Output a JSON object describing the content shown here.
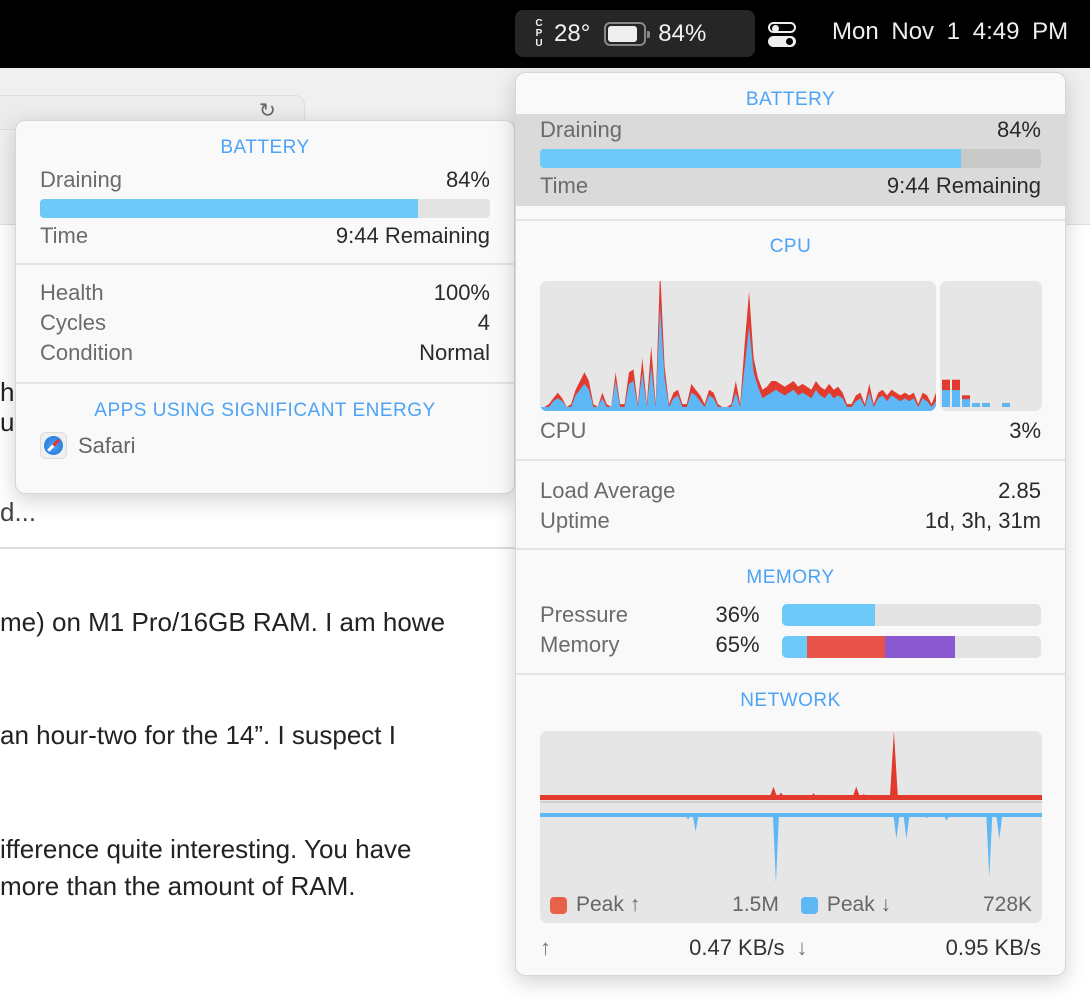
{
  "menubar": {
    "cpu_label": "CPU",
    "cpu_temp": "28°",
    "battery_percent": "84%",
    "battery_level": 0.84,
    "date": "Mon Nov 1",
    "time": "4:49 PM",
    "icons": [
      "battery-icon",
      "control-center-icon"
    ]
  },
  "background_page": {
    "lines": [
      "ha",
      "ur",
      "d...",
      "me) on M1 Pro/16GB RAM. I am howe",
      "an hour-two for the 14”. I suspect I",
      "ifference quite interesting. You have",
      "more than the amount of RAM."
    ]
  },
  "battery_popup": {
    "title": "BATTERY",
    "draining_label": "Draining",
    "draining_value": "84%",
    "level": 0.84,
    "time_label": "Time",
    "time_value": "9:44 Remaining",
    "health_label": "Health",
    "health_value": "100%",
    "cycles_label": "Cycles",
    "cycles_value": "4",
    "condition_label": "Condition",
    "condition_value": "Normal",
    "apps_title": "APPS USING SIGNIFICANT ENERGY",
    "apps": [
      {
        "name": "Safari",
        "icon": "safari-icon"
      }
    ]
  },
  "stats_panel": {
    "battery": {
      "title": "BATTERY",
      "draining_label": "Draining",
      "draining_value": "84%",
      "level": 0.84,
      "time_label": "Time",
      "time_value": "9:44 Remaining"
    },
    "cpu": {
      "title": "CPU",
      "label": "CPU",
      "value": "3%",
      "history_user": [
        0,
        0,
        0,
        2,
        3,
        2,
        0,
        0,
        4,
        6,
        8,
        6,
        0,
        0,
        3,
        0,
        0,
        9,
        0,
        0,
        8,
        9,
        0,
        12,
        0,
        14,
        0,
        35,
        10,
        0,
        3,
        4,
        0,
        0,
        5,
        4,
        2,
        0,
        4,
        3,
        0,
        0,
        0,
        0,
        5,
        0,
        14,
        28,
        12,
        7,
        3,
        4,
        5,
        6,
        5,
        4,
        5,
        6,
        4,
        5,
        4,
        3,
        6,
        4,
        3,
        5,
        3,
        4,
        3,
        0,
        0,
        2,
        3,
        0,
        5,
        0,
        3,
        4,
        2,
        4,
        3,
        2,
        3,
        2,
        3,
        0,
        3,
        2,
        0,
        2
      ],
      "history_system": [
        0,
        0,
        1,
        1,
        2,
        1,
        0,
        1,
        2,
        3,
        4,
        3,
        1,
        0,
        2,
        1,
        0,
        3,
        1,
        1,
        4,
        4,
        1,
        5,
        1,
        7,
        1,
        13,
        4,
        1,
        2,
        2,
        1,
        1,
        3,
        2,
        2,
        1,
        2,
        2,
        1,
        0,
        0,
        1,
        4,
        1,
        8,
        12,
        5,
        3,
        3,
        3,
        4,
        3,
        3,
        3,
        3,
        3,
        3,
        3,
        3,
        3,
        3,
        3,
        3,
        3,
        3,
        3,
        2,
        1,
        1,
        2,
        2,
        1,
        3,
        1,
        2,
        2,
        2,
        2,
        2,
        2,
        2,
        2,
        2,
        1,
        2,
        2,
        1,
        3
      ],
      "cores": [
        {
          "user": 0.13,
          "system": 0.08
        },
        {
          "user": 0.13,
          "system": 0.08
        },
        {
          "user": 0.06,
          "system": 0.03
        },
        {
          "user": 0.03,
          "system": 0
        },
        {
          "user": 0.03,
          "system": 0
        },
        {
          "user": 0,
          "system": 0
        },
        {
          "user": 0.03,
          "system": 0
        }
      ],
      "load_label": "Load Average",
      "load_value": "2.85",
      "uptime_label": "Uptime",
      "uptime_value": "1d, 3h, 31m"
    },
    "memory": {
      "title": "MEMORY",
      "pressure_label": "Pressure",
      "pressure_value": "36%",
      "pressure": 0.36,
      "memory_label": "Memory",
      "memory_value": "65%",
      "segments": [
        {
          "color": "#6cc9f8",
          "fraction": 0.1
        },
        {
          "color": "#ea5349",
          "fraction": 0.3
        },
        {
          "color": "#8a58cf",
          "fraction": 0.27
        }
      ]
    },
    "network": {
      "title": "NETWORK",
      "peak_up_label": "Peak ↑",
      "peak_up_value": "1.5M",
      "peak_down_label": "Peak ↓",
      "peak_down_value": "728K",
      "up_arrow": "↑",
      "up_rate": "0.47 KB/s",
      "down_arrow": "↓",
      "down_rate": "0.95 KB/s",
      "upload": [
        0,
        0,
        0,
        0,
        0,
        0,
        0,
        0,
        0,
        0,
        0,
        0,
        0,
        0,
        0,
        0,
        0,
        0,
        0,
        0,
        0,
        0,
        0,
        0,
        0,
        0,
        0,
        0,
        0,
        0,
        0,
        0,
        0,
        0,
        0,
        0,
        0,
        0,
        0,
        0,
        0,
        0,
        0,
        0,
        0,
        0,
        0,
        0,
        0,
        0,
        0,
        0,
        0,
        0,
        0,
        0,
        0,
        0,
        0,
        0,
        0,
        0,
        0,
        0,
        0,
        0,
        0,
        0,
        0,
        0,
        0,
        0,
        0,
        0,
        0,
        0,
        0,
        0,
        0,
        0,
        0,
        0,
        0,
        0,
        0,
        0,
        0,
        0,
        0,
        0,
        0,
        0,
        0,
        0,
        0,
        0,
        0,
        0,
        0,
        0,
        0,
        0,
        0,
        0,
        0,
        0,
        0,
        0,
        0,
        0,
        0,
        0,
        0,
        0,
        0,
        0,
        0,
        0,
        0,
        0,
        0,
        0,
        0,
        0,
        0,
        0,
        0,
        0,
        0,
        0,
        0,
        0,
        0,
        0,
        0,
        0,
        0,
        0,
        0,
        0,
        0,
        0,
        0,
        0,
        0,
        0,
        0,
        0,
        0,
        0,
        0,
        0,
        0,
        0,
        0,
        0,
        0,
        0,
        0,
        0,
        0,
        0,
        0,
        0,
        0,
        0,
        0,
        0,
        0,
        0,
        0,
        0,
        0,
        0,
        0,
        0,
        0,
        0,
        0,
        0,
        0,
        0,
        0,
        0,
        0,
        0,
        0,
        0,
        0,
        0,
        0,
        0,
        0,
        0,
        0,
        0,
        0,
        0,
        0,
        0,
        0,
        0,
        0,
        0,
        0,
        0,
        0,
        0,
        0,
        0,
        0,
        0,
        0,
        0,
        0,
        0,
        0,
        0,
        0,
        0,
        0,
        0,
        0,
        0,
        0,
        0,
        0,
        0,
        0,
        0,
        0,
        0,
        0,
        0,
        0,
        0,
        0,
        0,
        0,
        0,
        0,
        0,
        0,
        0,
        0,
        0,
        0,
        0,
        0,
        0,
        0,
        0,
        0,
        0,
        0,
        0,
        0,
        0,
        0,
        0,
        0,
        0,
        0,
        0,
        0,
        0,
        0,
        0,
        0,
        0,
        0,
        0,
        0,
        0,
        0,
        0,
        0,
        0,
        0,
        0,
        0,
        0,
        0,
        0,
        0,
        0,
        0,
        0,
        0,
        0,
        0,
        0,
        0,
        0,
        0,
        0,
        0,
        0,
        0,
        0,
        0,
        0,
        0,
        0,
        0,
        0,
        0,
        0,
        0,
        0,
        0,
        0,
        0,
        0,
        0,
        0,
        0,
        0,
        0,
        0,
        0,
        0,
        0,
        0,
        0,
        0,
        0,
        0,
        0,
        0,
        0,
        0,
        0,
        0,
        0,
        0,
        0,
        0,
        0,
        0,
        0,
        0,
        0,
        0,
        0,
        0,
        0,
        0,
        0,
        0,
        0,
        0,
        0,
        0,
        0,
        0,
        0,
        0,
        0,
        0,
        0,
        0,
        0,
        0,
        0,
        0,
        0,
        0,
        0,
        0,
        0,
        0,
        0,
        0,
        0,
        0,
        0,
        0,
        0,
        0,
        0,
        0,
        0,
        0,
        0,
        0,
        0,
        0,
        0,
        0,
        0,
        0,
        0,
        0,
        0,
        0,
        0,
        0,
        0,
        0,
        0,
        0,
        0,
        0,
        0,
        0,
        0,
        0,
        0,
        0,
        0,
        0,
        0,
        0,
        0,
        0,
        0,
        0,
        0,
        0,
        0,
        0,
        0,
        0,
        0,
        0,
        0,
        0,
        0,
        0,
        0,
        0,
        0,
        0,
        0,
        0,
        0,
        0,
        0,
        0,
        0,
        0,
        0,
        0,
        0,
        0,
        0,
        0,
        0,
        0,
        0,
        0,
        0,
        0,
        0,
        0,
        0,
        0,
        0,
        0,
        0,
        0,
        0,
        0,
        0,
        0,
        0,
        0,
        0,
        0,
        0,
        0,
        0,
        0,
        0,
        0,
        0,
        0,
        0,
        0,
        0,
        0,
        0,
        0,
        0,
        0,
        0,
        0,
        0,
        0,
        0,
        0,
        0,
        0,
        0,
        0,
        0,
        0,
        0,
        0,
        0,
        0,
        0,
        0,
        0,
        0,
        0,
        0,
        0,
        0,
        0,
        0,
        0,
        0,
        0,
        0,
        0,
        0,
        0,
        0,
        0,
        0,
        0,
        0,
        0,
        0,
        0,
        0,
        0,
        0,
        0,
        0,
        0,
        0,
        0,
        0,
        0,
        0,
        0,
        0,
        0,
        0,
        0,
        0,
        0,
        0,
        0,
        0,
        0,
        0,
        0,
        0,
        0,
        0,
        0,
        0,
        0,
        0,
        0,
        0,
        0,
        0,
        0
      ],
      "upload_spikes": [
        [
          0.465,
          0.17
        ],
        [
          0.48,
          0.08
        ],
        [
          0.5,
          0.04
        ],
        [
          0.52,
          0.04
        ],
        [
          0.545,
          0.07
        ],
        [
          0.56,
          0.05
        ],
        [
          0.63,
          0.17
        ],
        [
          0.645,
          0.06
        ],
        [
          0.705,
          1.0
        ]
      ],
      "download_spikes": [
        [
          0.295,
          0.04
        ],
        [
          0.31,
          0.15
        ],
        [
          0.47,
          0.62
        ],
        [
          0.71,
          0.22
        ],
        [
          0.73,
          0.22
        ],
        [
          0.77,
          0.03
        ],
        [
          0.81,
          0.05
        ],
        [
          0.895,
          0.57
        ],
        [
          0.915,
          0.22
        ]
      ]
    }
  }
}
